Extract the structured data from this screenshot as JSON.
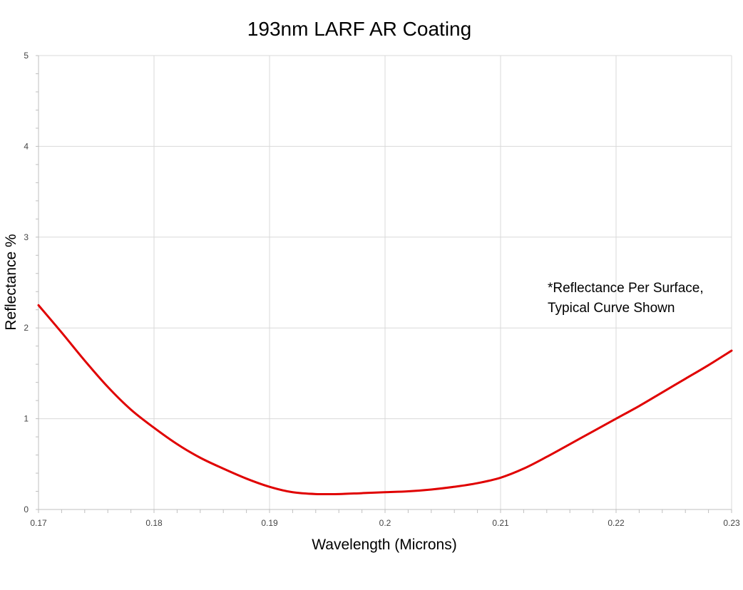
{
  "chart_data": {
    "type": "line",
    "title": "193nm LARF AR Coating",
    "xlabel": "Wavelength (Microns)",
    "ylabel": "Reflectance %",
    "xlim": [
      0.17,
      0.23
    ],
    "ylim": [
      0,
      5
    ],
    "x_ticks": [
      0.17,
      0.18,
      0.19,
      0.2,
      0.21,
      0.22,
      0.23
    ],
    "x_tick_labels": [
      "0.17",
      "0.18",
      "0.19",
      "0.2",
      "0.21",
      "0.22",
      "0.23"
    ],
    "y_ticks": [
      0,
      1,
      2,
      3,
      4,
      5
    ],
    "y_tick_labels": [
      "0",
      "1",
      "2",
      "3",
      "4",
      "5"
    ],
    "grid": true,
    "annotation_lines": [
      "*Reflectance Per Surface,",
      "Typical Curve Shown"
    ],
    "series": [
      {
        "color": "#e00000",
        "x": [
          0.17,
          0.172,
          0.174,
          0.176,
          0.178,
          0.18,
          0.182,
          0.184,
          0.186,
          0.188,
          0.19,
          0.192,
          0.194,
          0.196,
          0.198,
          0.2,
          0.202,
          0.204,
          0.206,
          0.208,
          0.21,
          0.212,
          0.214,
          0.216,
          0.218,
          0.22,
          0.222,
          0.224,
          0.226,
          0.228,
          0.23
        ],
        "y": [
          2.25,
          1.95,
          1.64,
          1.35,
          1.1,
          0.9,
          0.72,
          0.57,
          0.45,
          0.34,
          0.25,
          0.19,
          0.17,
          0.17,
          0.18,
          0.19,
          0.2,
          0.22,
          0.25,
          0.29,
          0.35,
          0.45,
          0.58,
          0.72,
          0.86,
          1.0,
          1.14,
          1.29,
          1.44,
          1.59,
          1.75
        ]
      }
    ]
  }
}
